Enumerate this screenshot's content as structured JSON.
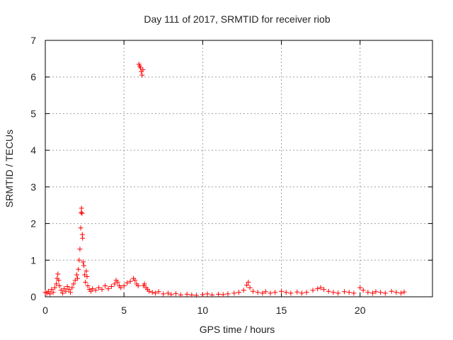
{
  "chart_data": {
    "type": "scatter",
    "title": "Day 111 of 2017, SRMTID for receiver riob",
    "xlabel": "GPS time / hours",
    "ylabel": "SRMTID / TECUs",
    "xlim": [
      0,
      24.6
    ],
    "ylim": [
      0,
      7
    ],
    "xticks": [
      0,
      5,
      10,
      15,
      20
    ],
    "yticks": [
      0,
      1,
      2,
      3,
      4,
      5,
      6,
      7
    ],
    "grid": true,
    "marker": "+",
    "color": "#ff0000",
    "series": [
      {
        "name": "riob",
        "points": [
          [
            0.0,
            0.12
          ],
          [
            0.1,
            0.1
          ],
          [
            0.2,
            0.15
          ],
          [
            0.3,
            0.08
          ],
          [
            0.4,
            0.2
          ],
          [
            0.5,
            0.12
          ],
          [
            0.6,
            0.25
          ],
          [
            0.7,
            0.35
          ],
          [
            0.75,
            0.5
          ],
          [
            0.8,
            0.62
          ],
          [
            0.85,
            0.45
          ],
          [
            0.9,
            0.3
          ],
          [
            1.0,
            0.18
          ],
          [
            1.1,
            0.1
          ],
          [
            1.2,
            0.22
          ],
          [
            1.3,
            0.15
          ],
          [
            1.4,
            0.28
          ],
          [
            1.5,
            0.2
          ],
          [
            1.6,
            0.12
          ],
          [
            1.7,
            0.25
          ],
          [
            1.8,
            0.35
          ],
          [
            1.9,
            0.45
          ],
          [
            2.0,
            0.6
          ],
          [
            2.05,
            0.5
          ],
          [
            2.1,
            0.75
          ],
          [
            2.15,
            1.0
          ],
          [
            2.2,
            1.3
          ],
          [
            2.25,
            1.88
          ],
          [
            2.28,
            2.3
          ],
          [
            2.3,
            2.42
          ],
          [
            2.33,
            2.28
          ],
          [
            2.35,
            1.7
          ],
          [
            2.37,
            1.6
          ],
          [
            2.4,
            0.95
          ],
          [
            2.45,
            0.85
          ],
          [
            2.5,
            0.6
          ],
          [
            2.55,
            0.4
          ],
          [
            2.6,
            0.7
          ],
          [
            2.65,
            0.55
          ],
          [
            2.7,
            0.3
          ],
          [
            2.8,
            0.2
          ],
          [
            2.9,
            0.15
          ],
          [
            3.0,
            0.22
          ],
          [
            3.2,
            0.18
          ],
          [
            3.4,
            0.25
          ],
          [
            3.6,
            0.2
          ],
          [
            3.8,
            0.3
          ],
          [
            4.0,
            0.22
          ],
          [
            4.2,
            0.28
          ],
          [
            4.4,
            0.35
          ],
          [
            4.5,
            0.45
          ],
          [
            4.6,
            0.4
          ],
          [
            4.7,
            0.3
          ],
          [
            4.8,
            0.25
          ],
          [
            5.0,
            0.3
          ],
          [
            5.2,
            0.38
          ],
          [
            5.4,
            0.42
          ],
          [
            5.6,
            0.5
          ],
          [
            5.7,
            0.45
          ],
          [
            5.8,
            0.35
          ],
          [
            5.9,
            0.3
          ],
          [
            5.95,
            6.35
          ],
          [
            6.0,
            6.3
          ],
          [
            6.05,
            6.25
          ],
          [
            6.1,
            6.15
          ],
          [
            6.15,
            6.05
          ],
          [
            6.2,
            6.2
          ],
          [
            6.25,
            0.3
          ],
          [
            6.3,
            0.35
          ],
          [
            6.4,
            0.25
          ],
          [
            6.5,
            0.2
          ],
          [
            6.6,
            0.15
          ],
          [
            6.8,
            0.12
          ],
          [
            7.0,
            0.1
          ],
          [
            7.2,
            0.14
          ],
          [
            7.5,
            0.08
          ],
          [
            7.8,
            0.1
          ],
          [
            8.0,
            0.06
          ],
          [
            8.3,
            0.09
          ],
          [
            8.6,
            0.05
          ],
          [
            9.0,
            0.07
          ],
          [
            9.3,
            0.05
          ],
          [
            9.6,
            0.04
          ],
          [
            10.0,
            0.06
          ],
          [
            10.3,
            0.08
          ],
          [
            10.6,
            0.05
          ],
          [
            11.0,
            0.07
          ],
          [
            11.3,
            0.06
          ],
          [
            11.6,
            0.08
          ],
          [
            12.0,
            0.1
          ],
          [
            12.3,
            0.12
          ],
          [
            12.6,
            0.18
          ],
          [
            12.8,
            0.32
          ],
          [
            12.9,
            0.4
          ],
          [
            13.0,
            0.25
          ],
          [
            13.2,
            0.15
          ],
          [
            13.5,
            0.12
          ],
          [
            13.8,
            0.1
          ],
          [
            14.0,
            0.14
          ],
          [
            14.3,
            0.1
          ],
          [
            14.6,
            0.12
          ],
          [
            15.0,
            0.15
          ],
          [
            15.3,
            0.12
          ],
          [
            15.6,
            0.1
          ],
          [
            16.0,
            0.13
          ],
          [
            16.3,
            0.1
          ],
          [
            16.6,
            0.12
          ],
          [
            17.0,
            0.18
          ],
          [
            17.3,
            0.22
          ],
          [
            17.5,
            0.25
          ],
          [
            17.7,
            0.2
          ],
          [
            18.0,
            0.15
          ],
          [
            18.3,
            0.12
          ],
          [
            18.6,
            0.1
          ],
          [
            19.0,
            0.14
          ],
          [
            19.3,
            0.12
          ],
          [
            19.6,
            0.1
          ],
          [
            20.0,
            0.25
          ],
          [
            20.2,
            0.18
          ],
          [
            20.5,
            0.12
          ],
          [
            20.8,
            0.1
          ],
          [
            21.0,
            0.14
          ],
          [
            21.3,
            0.12
          ],
          [
            21.6,
            0.1
          ],
          [
            22.0,
            0.15
          ],
          [
            22.3,
            0.12
          ],
          [
            22.6,
            0.1
          ],
          [
            22.8,
            0.13
          ]
        ]
      }
    ]
  }
}
